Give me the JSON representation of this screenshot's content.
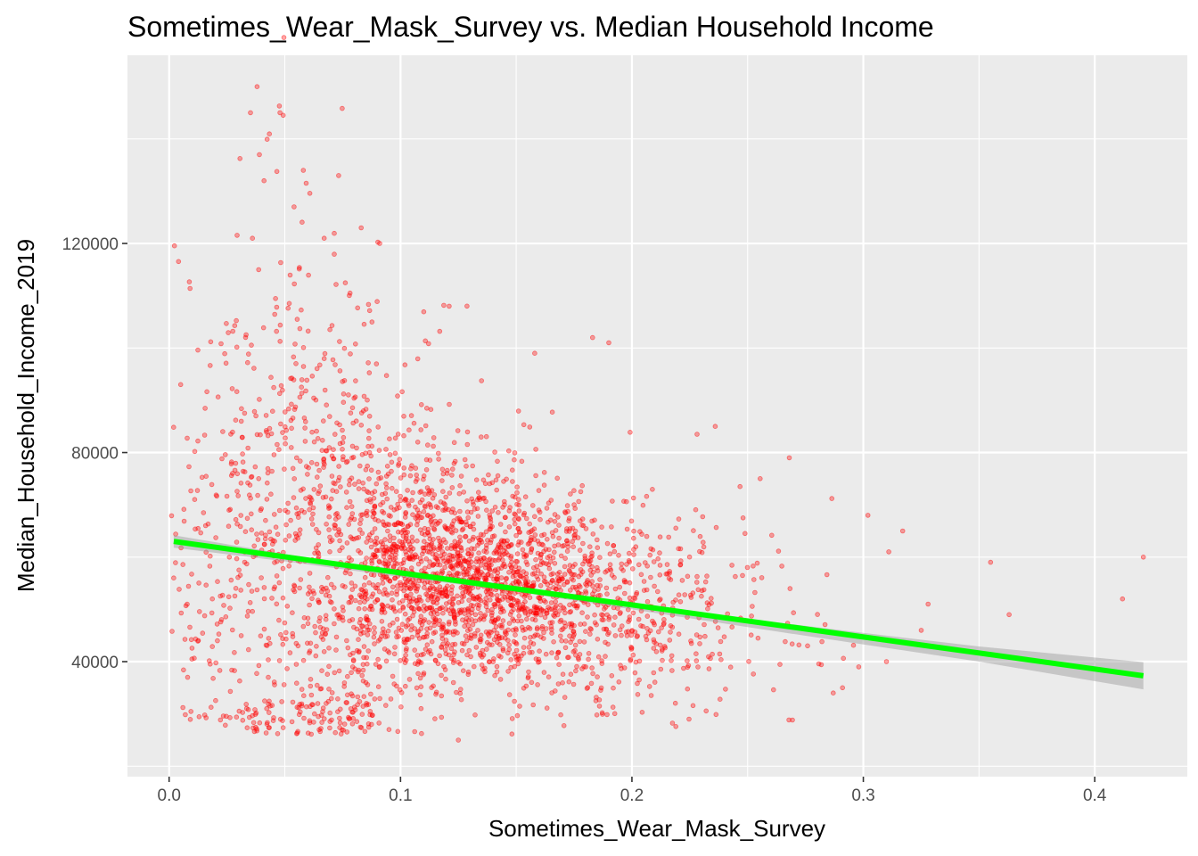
{
  "chart_data": {
    "type": "scatter",
    "title": "Sometimes_Wear_Mask_Survey vs. Median Household Income",
    "xlabel": "Sometimes_Wear_Mask_Survey",
    "ylabel": "Median_Household_Income_2019",
    "xlim": [
      -0.018,
      0.44
    ],
    "ylim": [
      18000,
      156000
    ],
    "x_ticks": [
      0.0,
      0.1,
      0.2,
      0.3,
      0.4
    ],
    "x_tick_labels": [
      "0.0",
      "0.1",
      "0.2",
      "0.3",
      "0.4"
    ],
    "y_ticks": [
      40000,
      80000,
      120000
    ],
    "y_tick_labels": [
      "40000",
      "80000",
      "120000"
    ],
    "grid": true,
    "panel_background": "#ebebeb",
    "point_color": "#ff0000",
    "point_opacity": 0.35,
    "approx_point_count": 3100,
    "cloud_center": {
      "x": 0.115,
      "y": 52000
    },
    "notable_points": [
      {
        "x": 0.038,
        "y": 150000
      },
      {
        "x": 0.039,
        "y": 137000
      },
      {
        "x": 0.058,
        "y": 134000
      },
      {
        "x": 0.041,
        "y": 132000
      },
      {
        "x": 0.054,
        "y": 127000
      },
      {
        "x": 0.083,
        "y": 123000
      },
      {
        "x": 0.036,
        "y": 121000
      },
      {
        "x": 0.067,
        "y": 121000
      },
      {
        "x": 0.091,
        "y": 120000
      },
      {
        "x": 0.121,
        "y": 108000
      },
      {
        "x": 0.183,
        "y": 102000
      },
      {
        "x": 0.19,
        "y": 101000
      },
      {
        "x": 0.158,
        "y": 99000
      },
      {
        "x": 0.236,
        "y": 85000
      },
      {
        "x": 0.268,
        "y": 79000
      },
      {
        "x": 0.302,
        "y": 68000
      },
      {
        "x": 0.317,
        "y": 65000
      },
      {
        "x": 0.311,
        "y": 61000
      },
      {
        "x": 0.355,
        "y": 59000
      },
      {
        "x": 0.421,
        "y": 60000
      },
      {
        "x": 0.412,
        "y": 52000
      },
      {
        "x": 0.363,
        "y": 49000
      },
      {
        "x": 0.328,
        "y": 51000
      },
      {
        "x": 0.325,
        "y": 46000
      },
      {
        "x": 0.31,
        "y": 40000
      },
      {
        "x": 0.298,
        "y": 39000
      },
      {
        "x": 0.291,
        "y": 35000
      },
      {
        "x": 0.287,
        "y": 34000
      },
      {
        "x": 0.125,
        "y": 25000
      },
      {
        "x": 0.095,
        "y": 27000
      },
      {
        "x": 0.002,
        "y": 56000
      },
      {
        "x": 0.005,
        "y": 93000
      },
      {
        "x": 0.008,
        "y": 37000
      }
    ],
    "fit_line": {
      "color": "#00ff00",
      "x": [
        0.002,
        0.421
      ],
      "y": [
        63000,
        37300
      ]
    },
    "confidence_band": {
      "color": "#999999",
      "opacity": 0.45,
      "x": [
        0.002,
        0.05,
        0.1,
        0.15,
        0.2,
        0.25,
        0.3,
        0.35,
        0.421
      ],
      "upper": [
        64200,
        60600,
        57200,
        54200,
        51200,
        48200,
        45500,
        42900,
        39900
      ],
      "lower": [
        61800,
        59200,
        56200,
        53400,
        50000,
        46600,
        43300,
        40000,
        34700
      ]
    }
  }
}
